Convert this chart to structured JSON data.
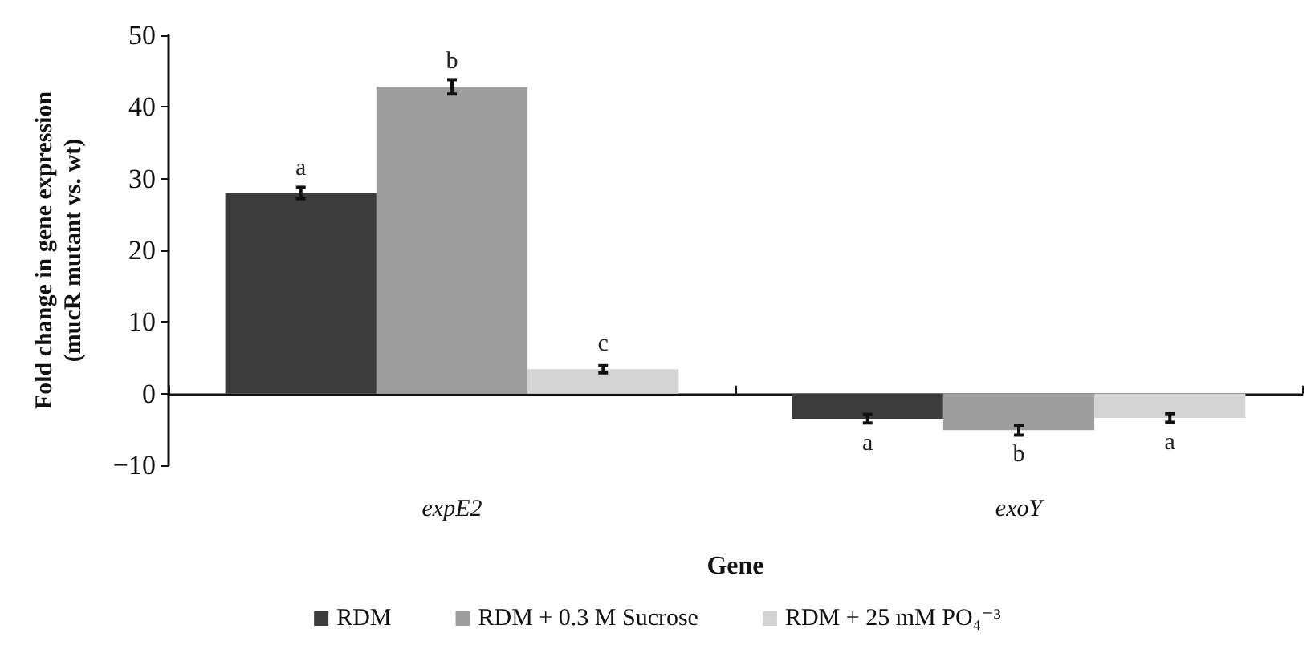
{
  "chart_data": {
    "type": "bar",
    "xlabel": "Gene",
    "ylabel": "Fold change in gene expression\n(mucR mutant vs. wt)",
    "categories": [
      "expE2",
      "exoY"
    ],
    "series": [
      {
        "name": "RDM",
        "color": "#3c3c3c",
        "values": [
          28,
          -3.5
        ],
        "errors": [
          0.8,
          0.6
        ],
        "value_labels": [
          "a",
          "a"
        ]
      },
      {
        "name": "RDM + 0.3 M Sucrose",
        "color": "#9e9e9e",
        "values": [
          42.8,
          -5.1
        ],
        "errors": [
          1,
          0.7
        ],
        "value_labels": [
          "b",
          "b"
        ]
      },
      {
        "name": "RDM + 25 mM PO₄⁻³",
        "color": "#d4d4d4",
        "values": [
          3.4,
          -3.4
        ],
        "errors": [
          0.5,
          0.6
        ],
        "value_labels": [
          "c",
          "a"
        ]
      }
    ],
    "ylim": [
      -10,
      50
    ],
    "yticks": [
      -10,
      0,
      10,
      20,
      30,
      40,
      50
    ],
    "legend": "bottom"
  }
}
